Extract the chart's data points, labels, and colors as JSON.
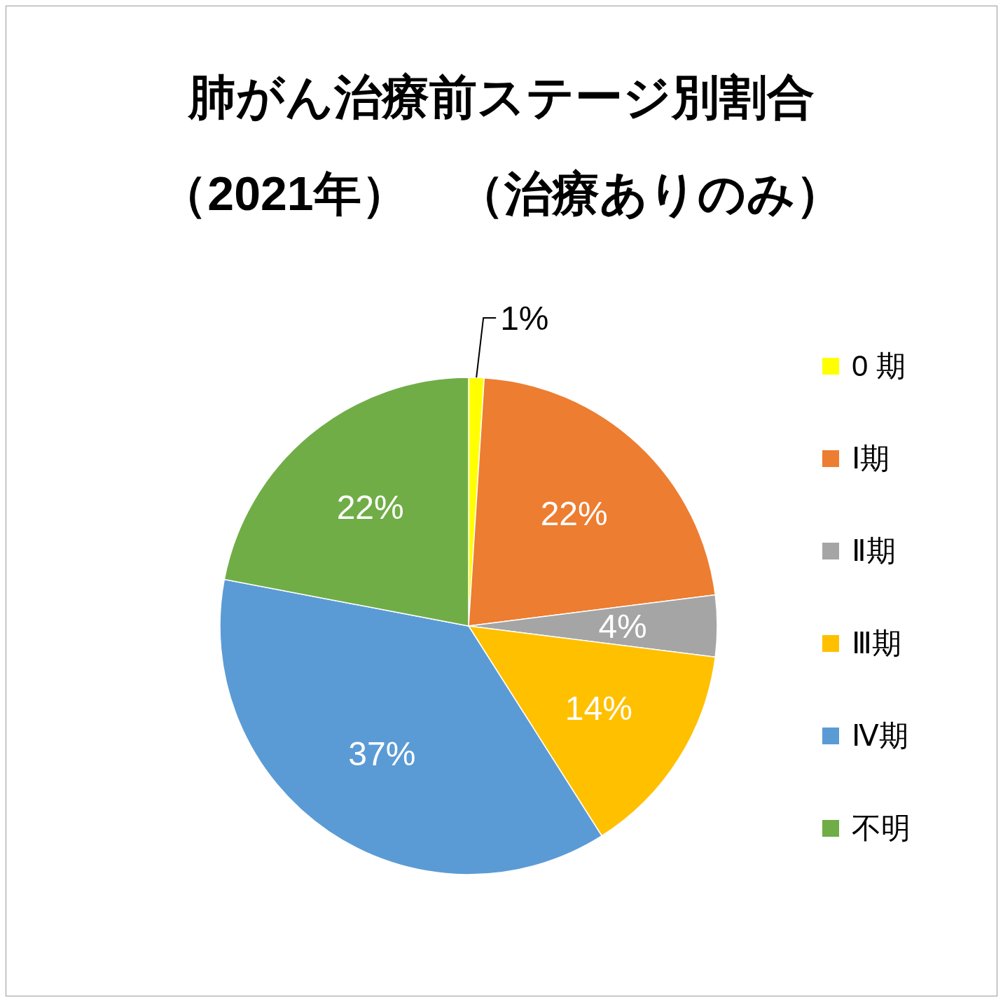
{
  "chart_data": {
    "type": "pie",
    "title": "肺がん治療前ステージ別割合",
    "subtitle": "（2021年）　（治療ありのみ）",
    "categories": [
      "0 期",
      "Ⅰ期",
      "Ⅱ期",
      "Ⅲ期",
      "Ⅳ期",
      "不明"
    ],
    "values": [
      1,
      22,
      4,
      14,
      37,
      22
    ],
    "value_labels": [
      "1%",
      "22%",
      "4%",
      "14%",
      "37%",
      "22%"
    ],
    "colors": [
      "#ffff00",
      "#ed7d31",
      "#a5a5a5",
      "#ffc000",
      "#5b9bd5",
      "#70ad47"
    ],
    "legend": "right"
  }
}
